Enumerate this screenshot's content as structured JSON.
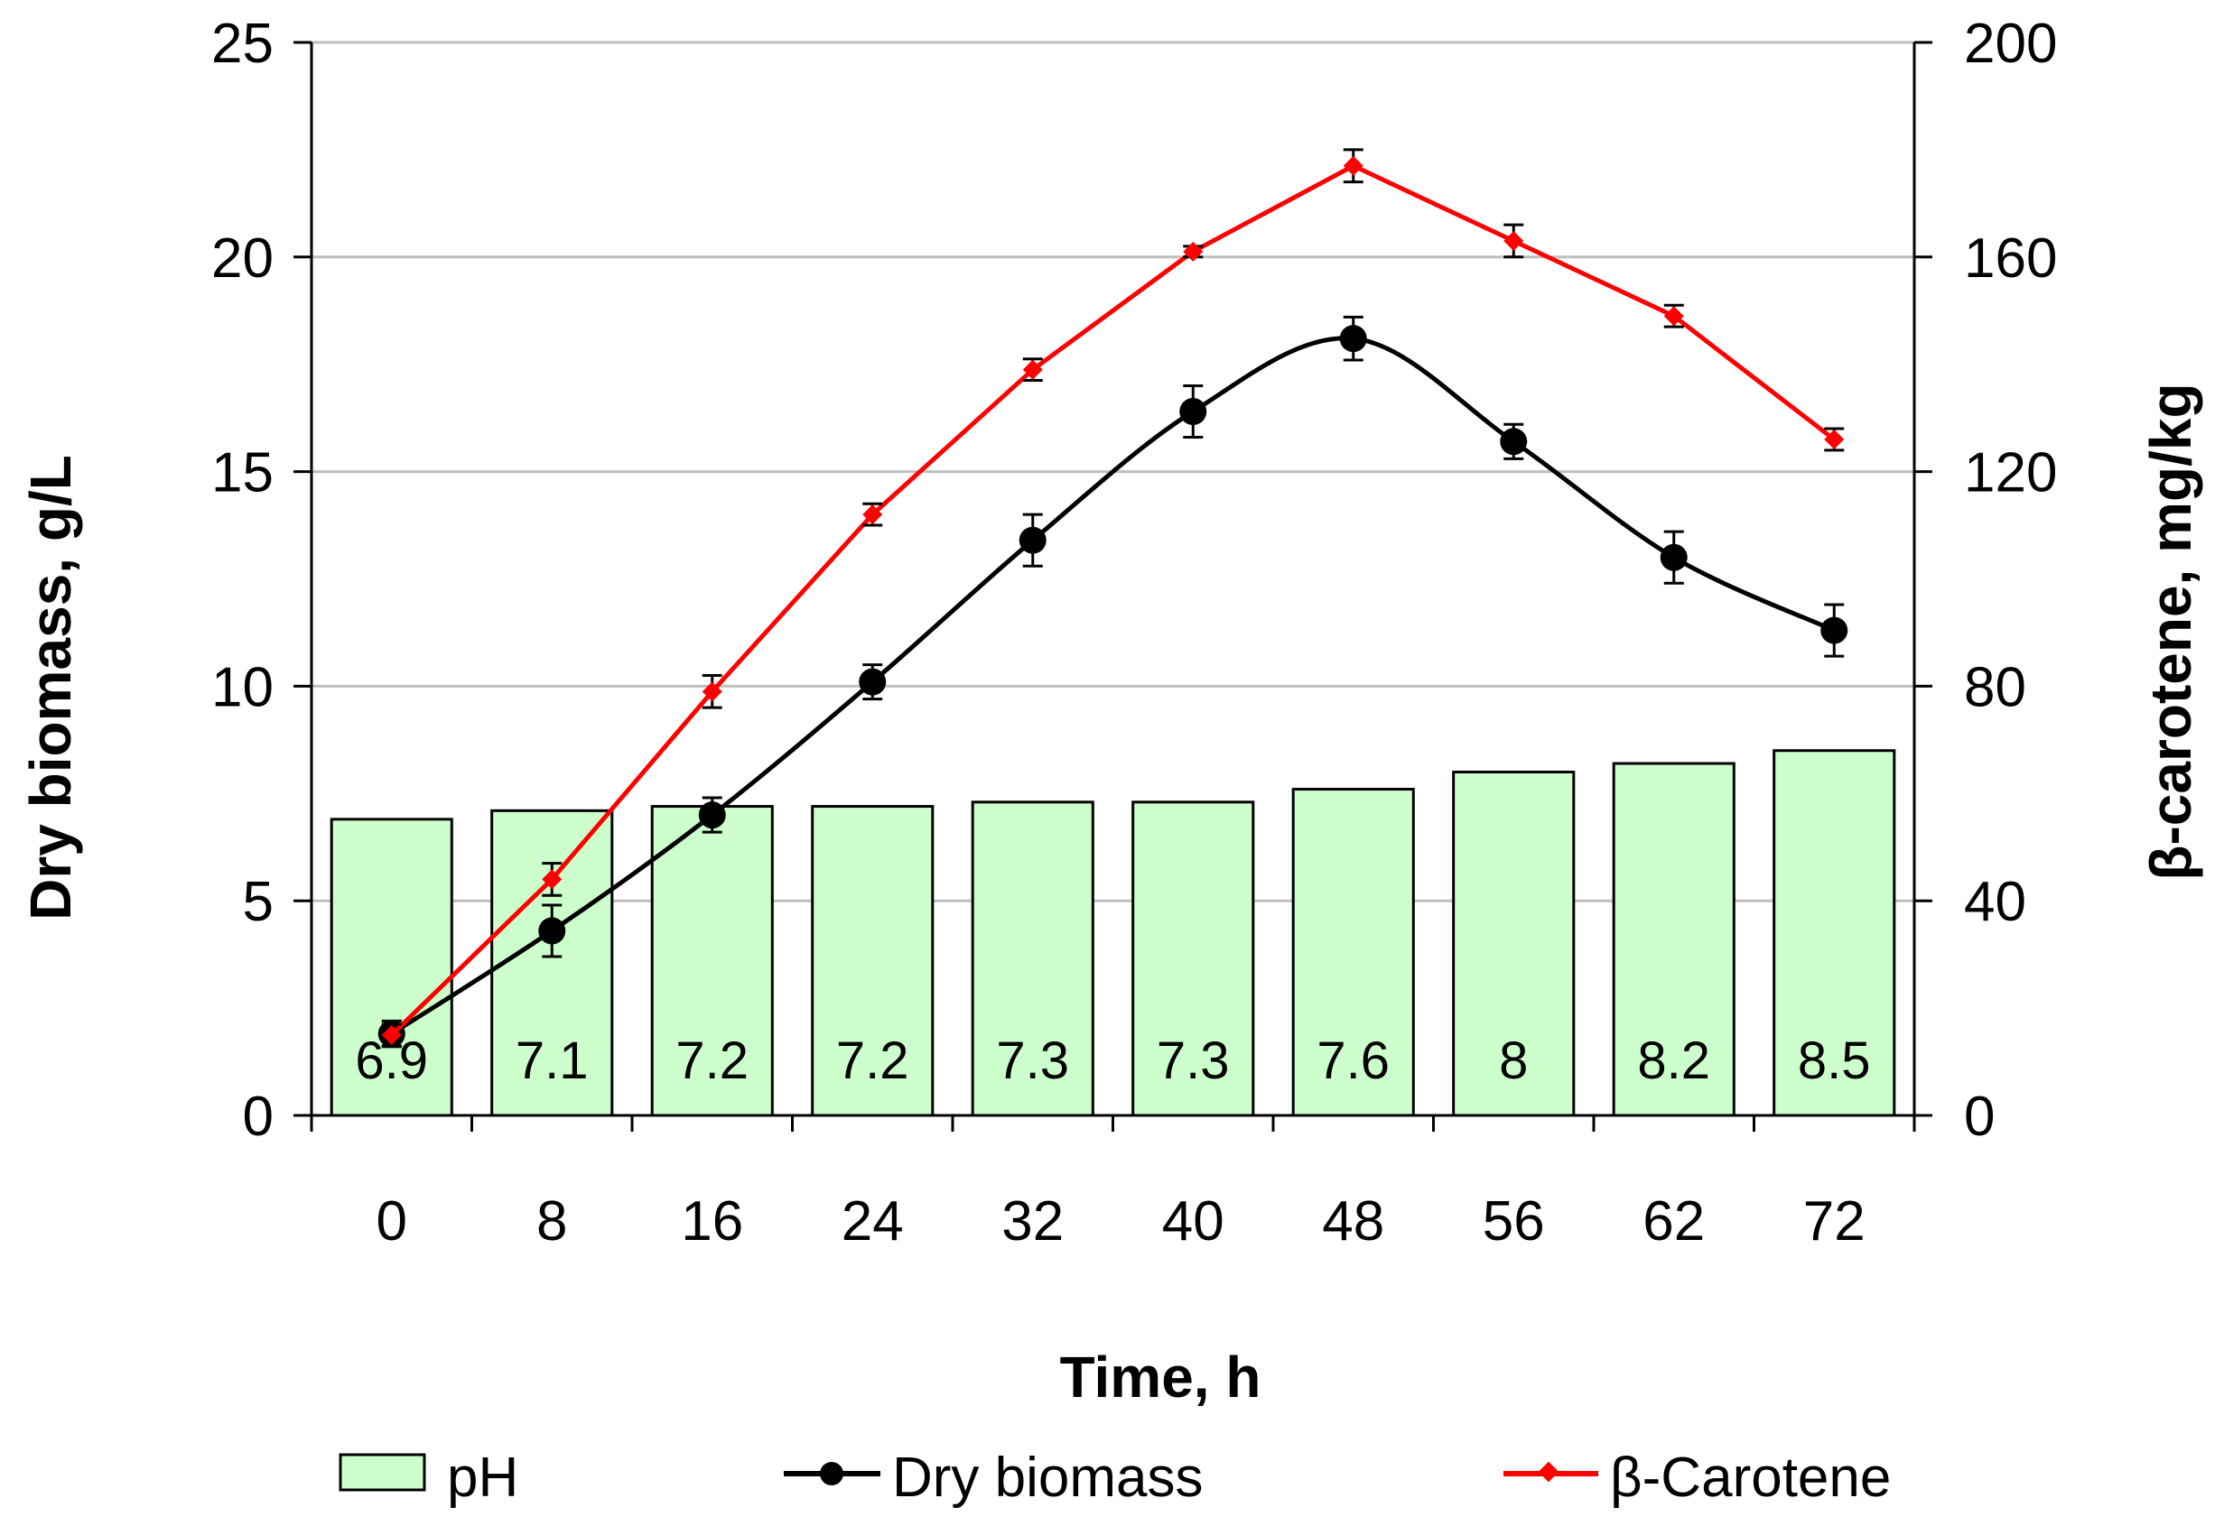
{
  "chart_data": {
    "type": "bar",
    "title": "",
    "x_categories": [
      "0",
      "8",
      "16",
      "24",
      "32",
      "40",
      "48",
      "56",
      "62",
      "72"
    ],
    "xlabel": "Time, h",
    "ylabel_left": "Dry biomass, g/L",
    "ylabel_right": "β-carotene, mg/kg",
    "ylim_left": [
      0,
      25
    ],
    "ylim_right": [
      0,
      200
    ],
    "yticks_left": [
      "0",
      "5",
      "10",
      "15",
      "20",
      "25"
    ],
    "yticks_right": [
      "0",
      "40",
      "80",
      "120",
      "160",
      "200"
    ],
    "grid": true,
    "legend_position": "bottom",
    "series": [
      {
        "name": "pH",
        "kind": "bar",
        "axis": "left",
        "color": "#ccffcc",
        "values": [
          6.9,
          7.1,
          7.2,
          7.2,
          7.3,
          7.3,
          7.6,
          8,
          8.2,
          8.5
        ],
        "labels": [
          "6.9",
          "7.1",
          "7.2",
          "7.2",
          "7.3",
          "7.3",
          "7.6",
          "8",
          "8.2",
          "8.5"
        ]
      },
      {
        "name": "Dry biomass",
        "kind": "line",
        "axis": "left",
        "color": "#000000",
        "marker": "circle",
        "values": [
          1.9,
          4.3,
          7.0,
          10.1,
          13.4,
          16.4,
          18.1,
          15.7,
          13.0,
          11.3
        ],
        "errors": [
          0.3,
          0.6,
          0.4,
          0.4,
          0.6,
          0.6,
          0.5,
          0.4,
          0.6,
          0.6
        ]
      },
      {
        "name": "β-Carotene",
        "kind": "line",
        "axis": "right",
        "color": "#ff0000",
        "marker": "diamond",
        "values": [
          15,
          44,
          79,
          112,
          139,
          161,
          177,
          163,
          149,
          126
        ],
        "errors": [
          2,
          3,
          3,
          2,
          2,
          1,
          3,
          3,
          2,
          2
        ]
      }
    ]
  }
}
